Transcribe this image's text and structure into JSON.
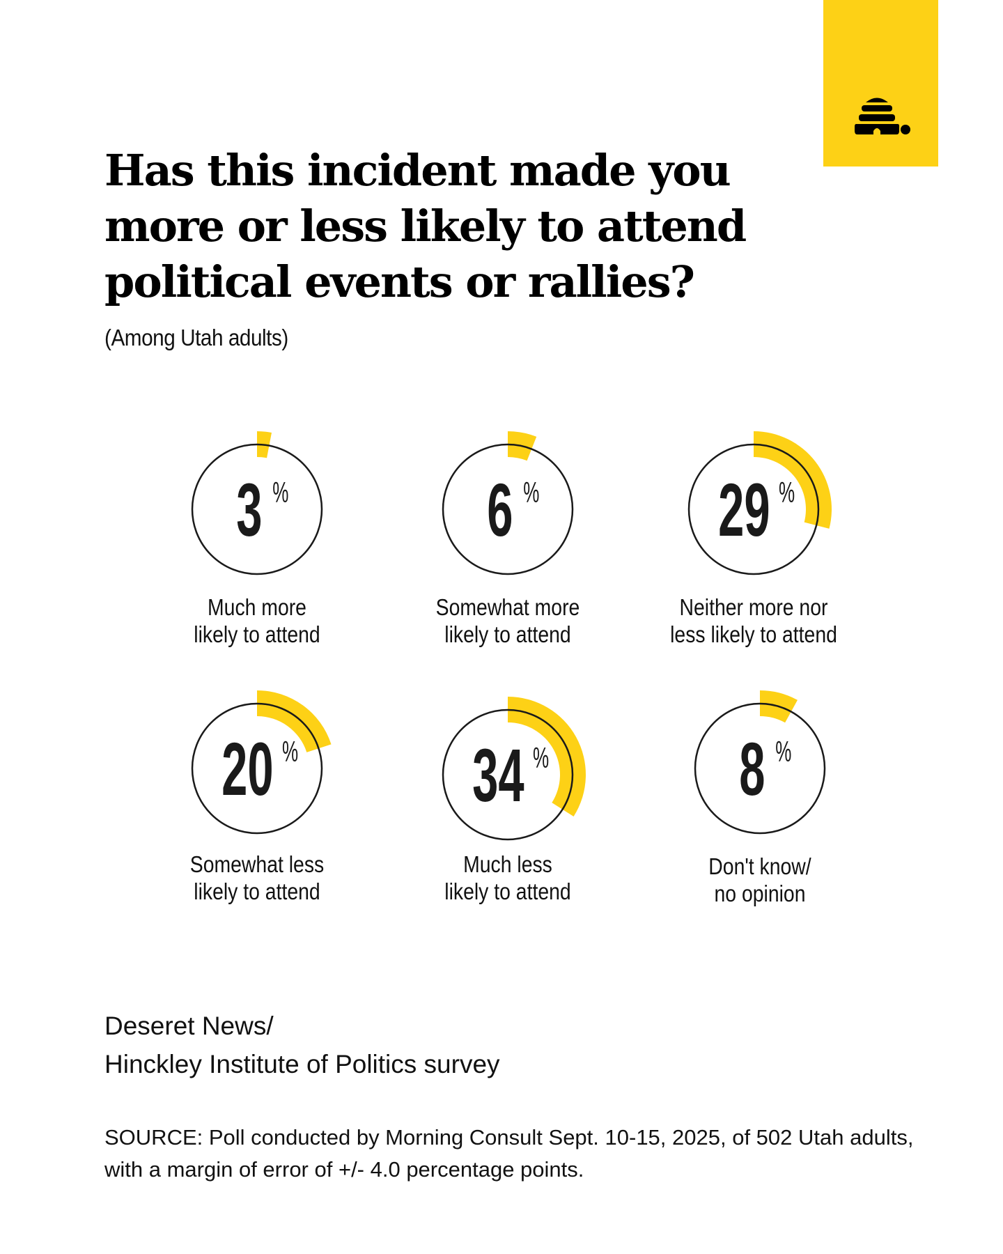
{
  "title": "Has this incident made you more or less likely to attend political events or rallies?",
  "subtitle": "(Among Utah adults)",
  "logo": {
    "icon": "beehive-icon",
    "background": "#fdd116"
  },
  "chart_data": {
    "type": "donut-progress",
    "unit": "%",
    "accent_color": "#fdd116",
    "items": [
      {
        "value": 3,
        "label_lines": [
          "Much more",
          "likely to attend"
        ]
      },
      {
        "value": 6,
        "label_lines": [
          "Somewhat more",
          "likely to attend"
        ]
      },
      {
        "value": 29,
        "label_lines": [
          "Neither more nor",
          "less likely to attend"
        ]
      },
      {
        "value": 20,
        "label_lines": [
          "Somewhat less",
          "likely to attend"
        ]
      },
      {
        "value": 34,
        "label_lines": [
          "Much less",
          "likely to attend"
        ]
      },
      {
        "value": 8,
        "label_lines": [
          "Don't know/",
          "no opinion"
        ]
      }
    ]
  },
  "credit": [
    "Deseret News/",
    "Hinckley Institute of Politics survey"
  ],
  "source": "SOURCE: Poll conducted by Morning Consult Sept. 10-15, 2025, of 502 Utah adults, with a margin of error of +/- 4.0 percentage points."
}
